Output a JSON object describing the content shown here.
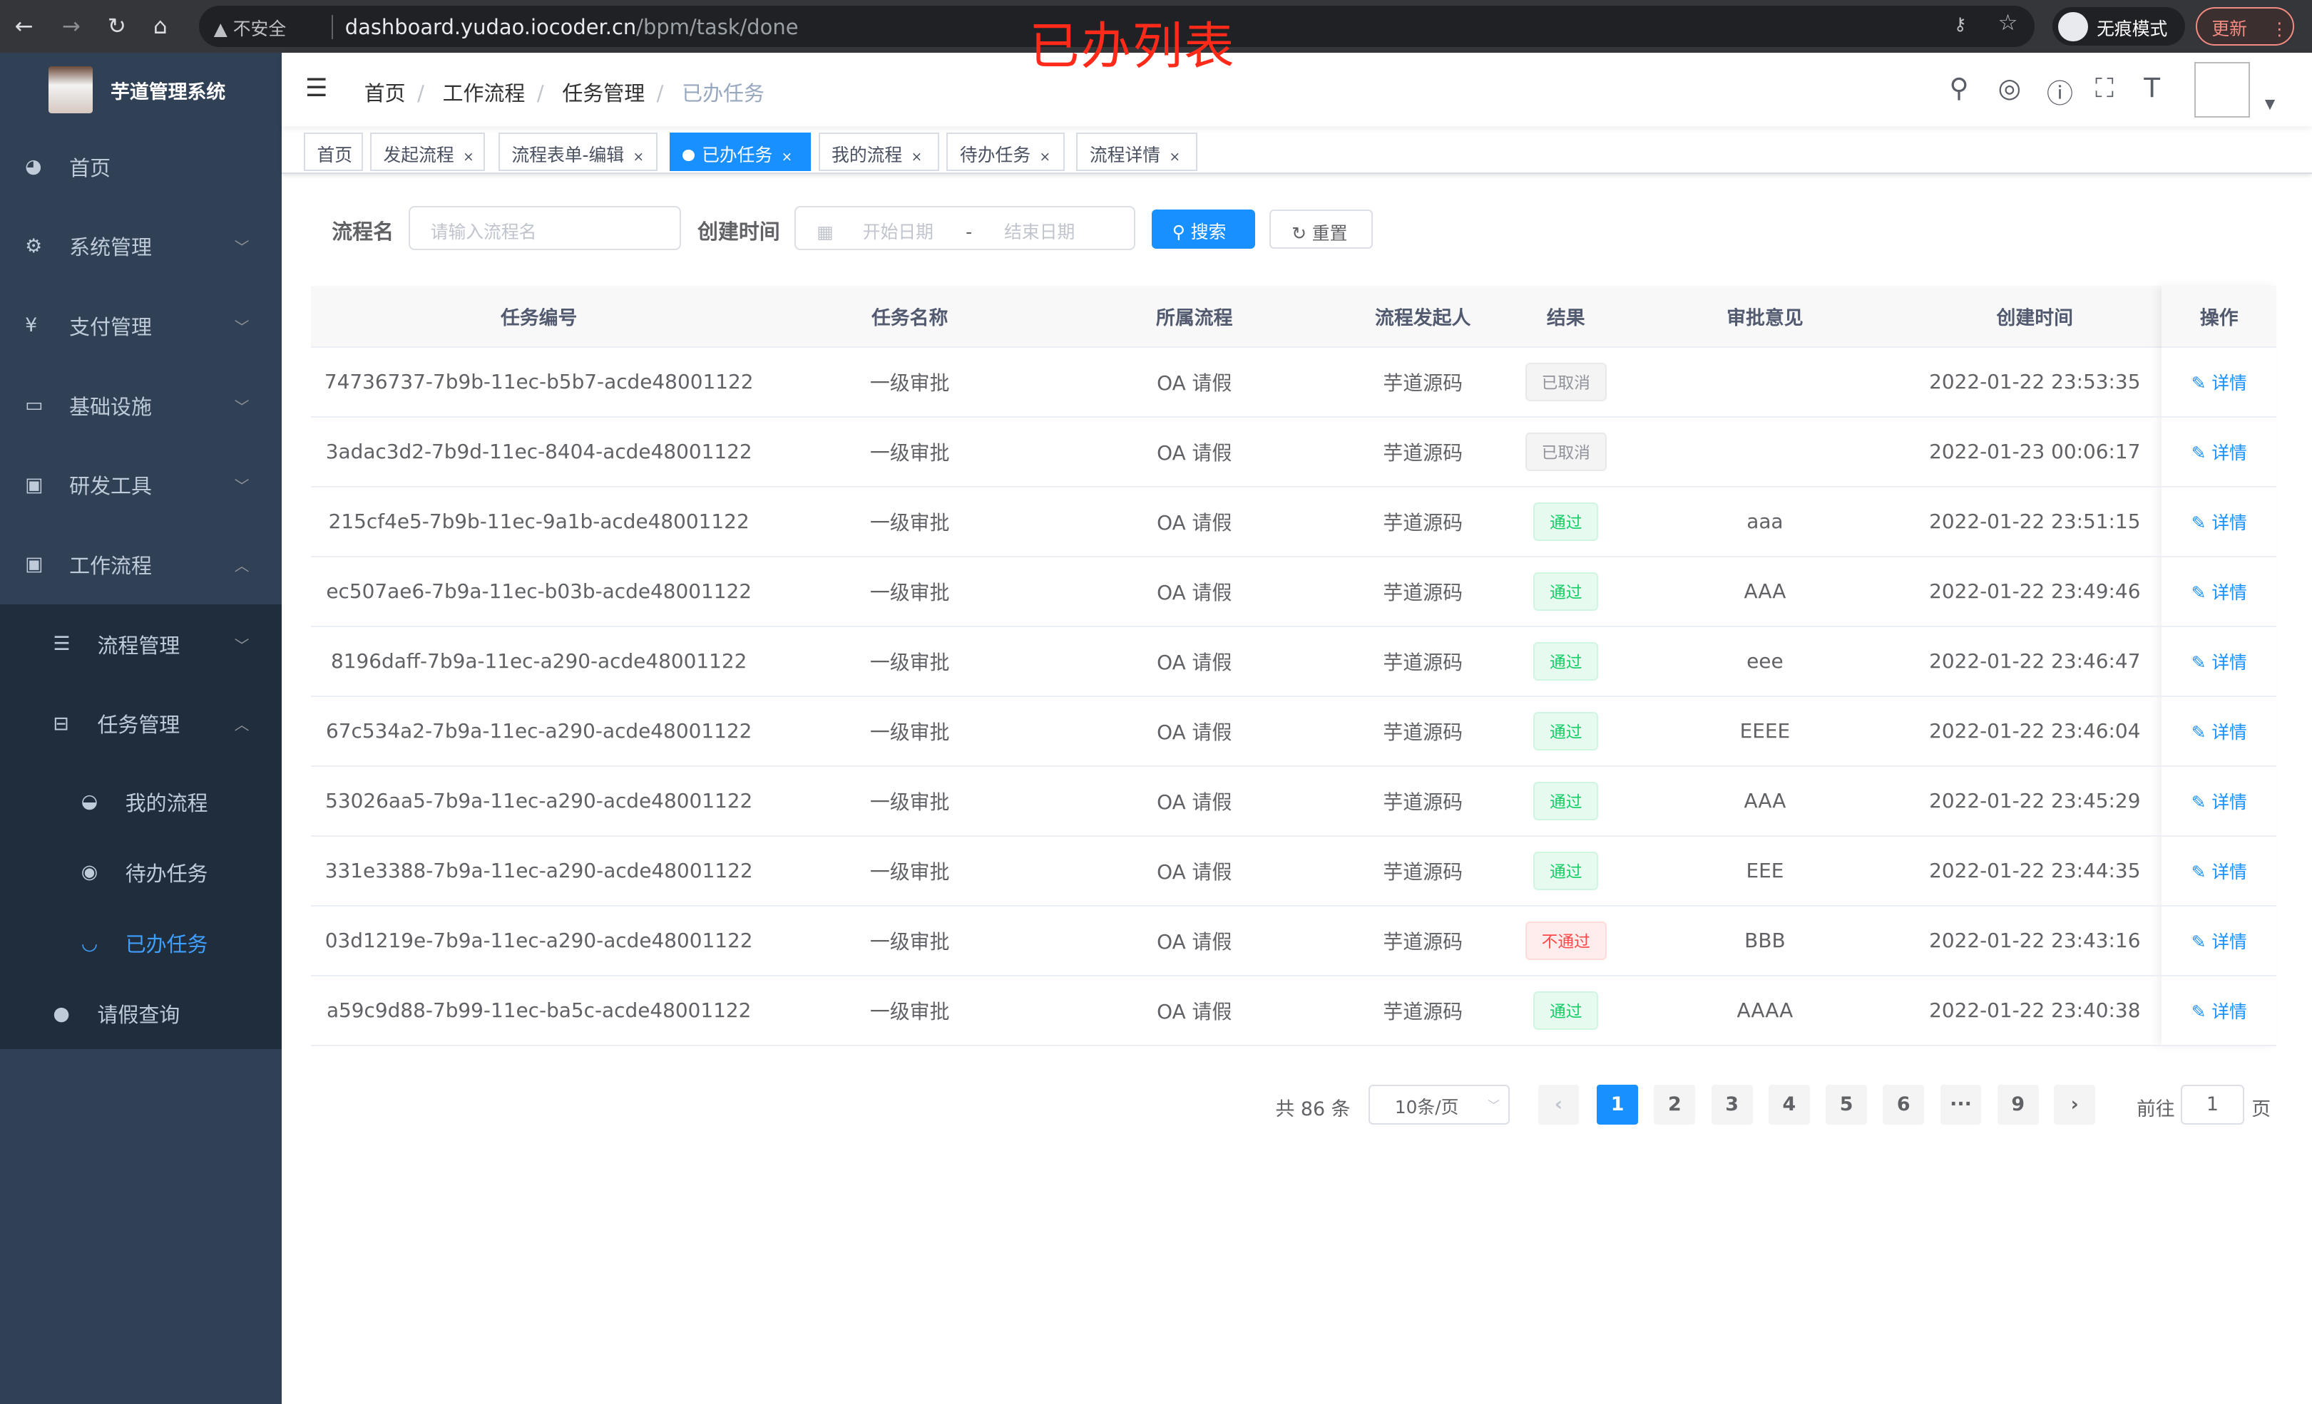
{
  "browser": {
    "security": "不安全",
    "url_host": "dashboard.yudao.iocoder.cn",
    "url_path": "/bpm/task/done",
    "incognito": "无痕模式",
    "update": "更新"
  },
  "overlay_title": "已办列表",
  "sidebar": {
    "title": "芋道管理系统",
    "items": [
      {
        "label": "首页",
        "icon": "dashboard-icon"
      },
      {
        "label": "系统管理",
        "icon": "gear-icon"
      },
      {
        "label": "支付管理",
        "icon": "yen-icon"
      },
      {
        "label": "基础设施",
        "icon": "monitor-icon"
      },
      {
        "label": "研发工具",
        "icon": "toolbox-icon"
      },
      {
        "label": "工作流程",
        "icon": "toolbox-icon"
      },
      {
        "label": "流程管理",
        "icon": "list-icon"
      },
      {
        "label": "任务管理",
        "icon": "tree-icon"
      },
      {
        "label": "我的流程",
        "icon": "form-icon"
      },
      {
        "label": "待办任务",
        "icon": "eye-icon"
      },
      {
        "label": "已办任务",
        "icon": "eye-closed-icon"
      },
      {
        "label": "请假查询",
        "icon": "user-icon"
      }
    ],
    "active": "已办任务",
    "active_color": "#409eff",
    "bg": "#304156"
  },
  "breadcrumb": [
    "首页",
    "工作流程",
    "任务管理",
    "已办任务"
  ],
  "tags": [
    {
      "label": "首页"
    },
    {
      "label": "发起流程"
    },
    {
      "label": "流程表单-编辑"
    },
    {
      "label": "已办任务",
      "active": true
    },
    {
      "label": "我的流程"
    },
    {
      "label": "待办任务"
    },
    {
      "label": "流程详情"
    }
  ],
  "filter": {
    "name_label": "流程名",
    "name_placeholder": "请输入流程名",
    "time_label": "创建时间",
    "start_placeholder": "开始日期",
    "range_sep": "-",
    "end_placeholder": "结束日期",
    "search": "搜索",
    "reset": "重置"
  },
  "table": {
    "columns": [
      "任务编号",
      "任务名称",
      "所属流程",
      "流程发起人",
      "结果",
      "审批意见",
      "创建时间",
      "操作"
    ],
    "rows": [
      {
        "id": "74736737-7b9b-11ec-b5b7-acde48001122",
        "name": "一级审批",
        "process": "OA 请假",
        "starter": "芋道源码",
        "result": "已取消",
        "status": "info",
        "comment": "",
        "time": "2022-01-22 23:53:35"
      },
      {
        "id": "3adac3d2-7b9d-11ec-8404-acde48001122",
        "name": "一级审批",
        "process": "OA 请假",
        "starter": "芋道源码",
        "result": "已取消",
        "status": "info",
        "comment": "",
        "time": "2022-01-23 00:06:17"
      },
      {
        "id": "215cf4e5-7b9b-11ec-9a1b-acde48001122",
        "name": "一级审批",
        "process": "OA 请假",
        "starter": "芋道源码",
        "result": "通过",
        "status": "success",
        "comment": "aaa",
        "time": "2022-01-22 23:51:15"
      },
      {
        "id": "ec507ae6-7b9a-11ec-b03b-acde48001122",
        "name": "一级审批",
        "process": "OA 请假",
        "starter": "芋道源码",
        "result": "通过",
        "status": "success",
        "comment": "AAA",
        "time": "2022-01-22 23:49:46"
      },
      {
        "id": "8196daff-7b9a-11ec-a290-acde48001122",
        "name": "一级审批",
        "process": "OA 请假",
        "starter": "芋道源码",
        "result": "通过",
        "status": "success",
        "comment": "eee",
        "time": "2022-01-22 23:46:47"
      },
      {
        "id": "67c534a2-7b9a-11ec-a290-acde48001122",
        "name": "一级审批",
        "process": "OA 请假",
        "starter": "芋道源码",
        "result": "通过",
        "status": "success",
        "comment": "EEEE",
        "time": "2022-01-22 23:46:04"
      },
      {
        "id": "53026aa5-7b9a-11ec-a290-acde48001122",
        "name": "一级审批",
        "process": "OA 请假",
        "starter": "芋道源码",
        "result": "通过",
        "status": "success",
        "comment": "AAA",
        "time": "2022-01-22 23:45:29"
      },
      {
        "id": "331e3388-7b9a-11ec-a290-acde48001122",
        "name": "一级审批",
        "process": "OA 请假",
        "starter": "芋道源码",
        "result": "通过",
        "status": "success",
        "comment": "EEE",
        "time": "2022-01-22 23:44:35"
      },
      {
        "id": "03d1219e-7b9a-11ec-a290-acde48001122",
        "name": "一级审批",
        "process": "OA 请假",
        "starter": "芋道源码",
        "result": "不通过",
        "status": "danger",
        "comment": "BBB",
        "time": "2022-01-22 23:43:16"
      },
      {
        "id": "a59c9d88-7b99-11ec-ba5c-acde48001122",
        "name": "一级审批",
        "process": "OA 请假",
        "starter": "芋道源码",
        "result": "通过",
        "status": "success",
        "comment": "AAAA",
        "time": "2022-01-22 23:40:38"
      }
    ],
    "action": "详情"
  },
  "pagination": {
    "total": "共 86 条",
    "page_size": "10条/页",
    "pages": [
      "1",
      "2",
      "3",
      "4",
      "5",
      "6",
      "···",
      "9"
    ],
    "current": "1",
    "goto_label": "前往",
    "goto_value": "1",
    "page_unit": "页"
  },
  "colors": {
    "primary": "#1890ff",
    "sidebar": "#304156",
    "title_red": "#ff2a1a"
  }
}
